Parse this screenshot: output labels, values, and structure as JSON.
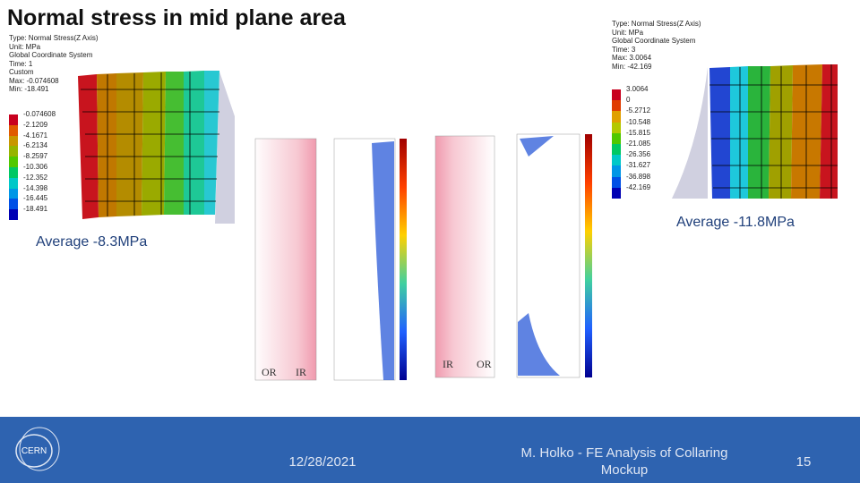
{
  "header": {
    "title": "Normal stress in mid plane area"
  },
  "left_plot": {
    "info": [
      "Type: Normal Stress(Z Axis)",
      "Unit: MPa",
      "Global Coordinate System",
      "Time: 1",
      "Custom",
      "Max: -0.074608",
      "Min: -18.491"
    ],
    "legend": [
      "-0.074608",
      "-2.1209",
      "-4.1671",
      "-6.2134",
      "-8.2597",
      "-10.306",
      "-12.352",
      "-14.398",
      "-16.445",
      "-18.491"
    ],
    "average": "Average -8.3MPa"
  },
  "right_plot": {
    "info": [
      "Type: Normal Stress(Z Axis)",
      "Unit: MPa",
      "Global Coordinate System",
      "Time: 3",
      "Max: 3.0064",
      "Min: -42.169"
    ],
    "legend": [
      "3.0064",
      "0",
      "-5.2712",
      "-10.548",
      "-15.815",
      "-21.085",
      "-26.356",
      "-31.627",
      "-36.898",
      "-42.169"
    ],
    "average": "Average -11.8MPa"
  },
  "middle_plots": [
    {
      "labels": [
        "OR",
        "IR"
      ]
    },
    {
      "labels": [
        "IR",
        "OR"
      ]
    }
  ],
  "footer": {
    "logo": "CERN",
    "date": "12/28/2021",
    "author_title": "M. Holko - FE Analysis of Collaring Mockup",
    "page": "15"
  }
}
